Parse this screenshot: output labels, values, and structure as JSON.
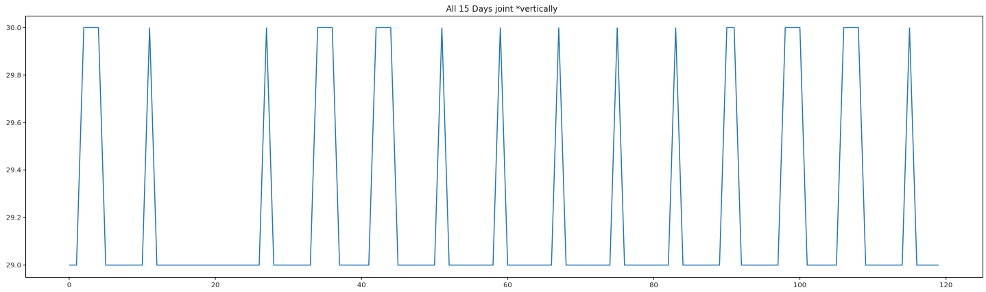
{
  "chart_data": {
    "type": "line",
    "title": "All 15 Days joint *vertically",
    "xlabel": "",
    "ylabel": "",
    "xlim": [
      -6,
      125
    ],
    "ylim": [
      28.95,
      30.05
    ],
    "xticks": [
      0,
      20,
      40,
      60,
      80,
      100,
      120
    ],
    "yticks": [
      29.0,
      29.2,
      29.4,
      29.6,
      29.8,
      30.0
    ],
    "xtick_labels": [
      "0",
      "20",
      "40",
      "60",
      "80",
      "100",
      "120"
    ],
    "ytick_labels": [
      "29.0",
      "29.2",
      "29.4",
      "29.6",
      "29.8",
      "30.0"
    ],
    "grid": false,
    "line_color": "#1f77b4",
    "series": [
      {
        "x": [
          0,
          1,
          2,
          3,
          4,
          5,
          6,
          7,
          8,
          9,
          10,
          11,
          12,
          13,
          14,
          15,
          16,
          17,
          18,
          19,
          20,
          21,
          22,
          23,
          24,
          25,
          26,
          27,
          28,
          29,
          30,
          31,
          32,
          33,
          34,
          35,
          36,
          37,
          38,
          39,
          40,
          41,
          42,
          43,
          44,
          45,
          46,
          47,
          48,
          49,
          50,
          51,
          52,
          53,
          54,
          55,
          56,
          57,
          58,
          59,
          60,
          61,
          62,
          63,
          64,
          65,
          66,
          67,
          68,
          69,
          70,
          71,
          72,
          73,
          74,
          75,
          76,
          77,
          78,
          79,
          80,
          81,
          82,
          83,
          84,
          85,
          86,
          87,
          88,
          89,
          90,
          91,
          92,
          93,
          94,
          95,
          96,
          97,
          98,
          99,
          100,
          101,
          102,
          103,
          104,
          105,
          106,
          107,
          108,
          109,
          110,
          111,
          112,
          113,
          114,
          115,
          116,
          117,
          118,
          119
        ],
        "values": [
          29,
          29,
          30,
          30,
          30,
          29,
          29,
          29,
          29,
          29,
          29,
          30,
          29,
          29,
          29,
          29,
          29,
          29,
          29,
          29,
          29,
          29,
          29,
          29,
          29,
          29,
          29,
          30,
          29,
          29,
          29,
          29,
          29,
          29,
          30,
          30,
          30,
          29,
          29,
          29,
          29,
          29,
          30,
          30,
          30,
          29,
          29,
          29,
          29,
          29,
          29,
          30,
          29,
          29,
          29,
          29,
          29,
          29,
          29,
          30,
          29,
          29,
          29,
          29,
          29,
          29,
          29,
          30,
          29,
          29,
          29,
          29,
          29,
          29,
          29,
          30,
          29,
          29,
          29,
          29,
          29,
          29,
          29,
          30,
          29,
          29,
          29,
          29,
          29,
          29,
          30,
          30,
          29,
          29,
          29,
          29,
          29,
          29,
          30,
          30,
          30,
          29,
          29,
          29,
          29,
          29,
          30,
          30,
          30,
          29,
          29,
          29,
          29,
          29,
          29,
          30,
          29,
          29,
          29,
          29
        ]
      }
    ]
  }
}
